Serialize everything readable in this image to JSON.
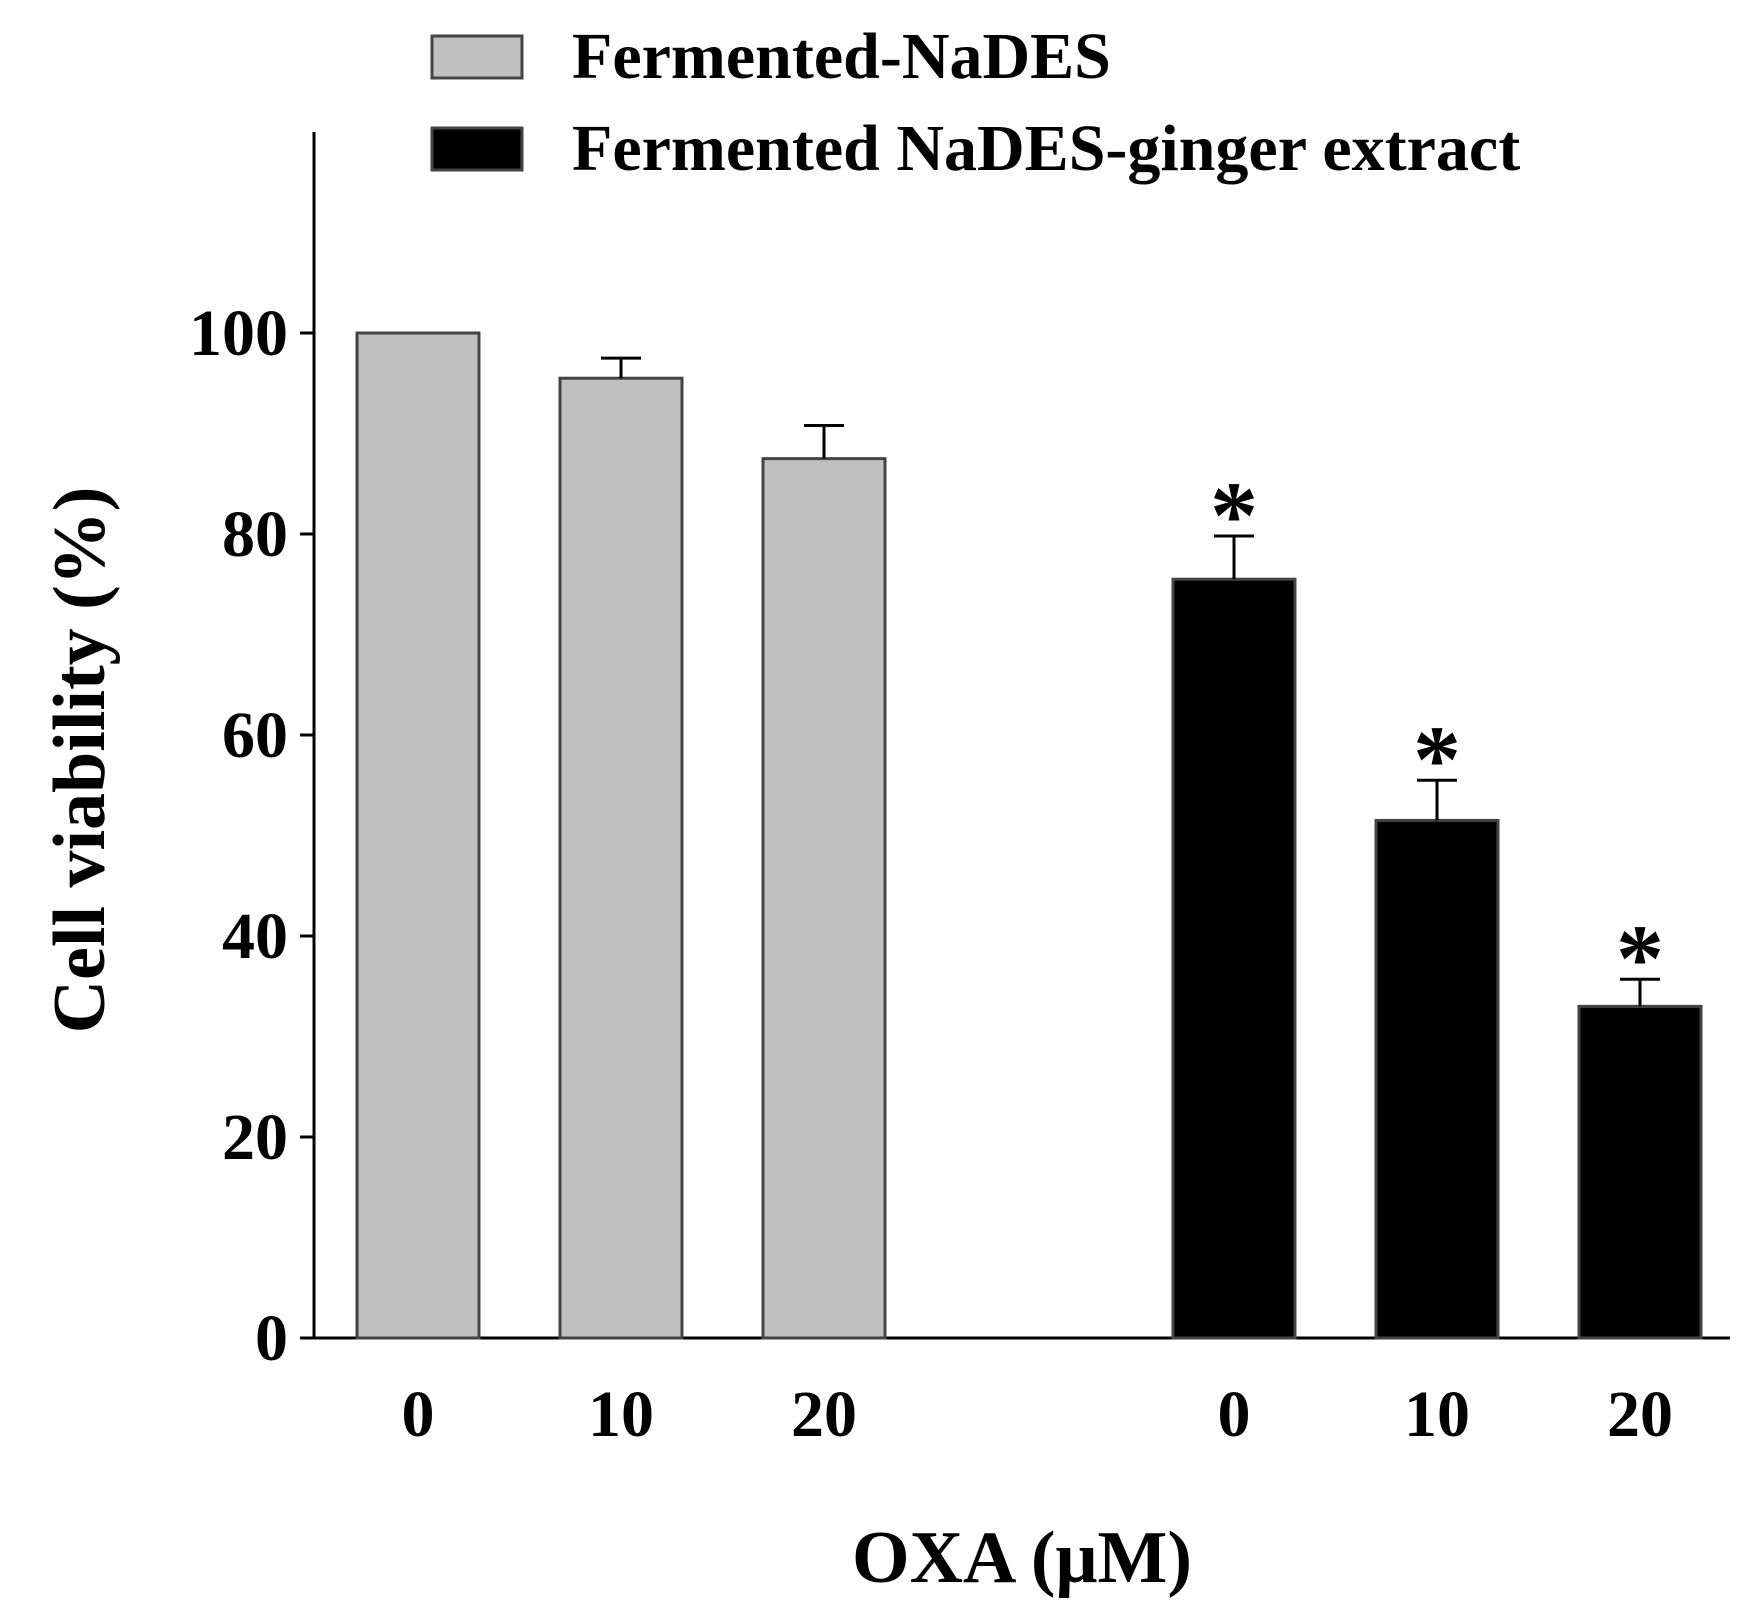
{
  "chart_data": {
    "type": "bar",
    "title": "",
    "xlabel": "OXA (μM)",
    "ylabel": "Cell viability (%)",
    "ylim": [
      0,
      120
    ],
    "yticks": [
      0,
      20,
      40,
      60,
      80,
      100
    ],
    "categories": [
      "0",
      "10",
      "20"
    ],
    "grid": false,
    "legend_position": "top",
    "series": [
      {
        "name": "Fermented-NaDES",
        "color": "#c0c0c0",
        "values": [
          100,
          95.5,
          87.5
        ],
        "errors": [
          0,
          2,
          3.3
        ],
        "annotations": [
          "",
          "",
          ""
        ]
      },
      {
        "name": "Fermented NaDES-ginger extract",
        "color": "#000000",
        "values": [
          75.5,
          51.5,
          33
        ],
        "errors": [
          4.3,
          4,
          2.7
        ],
        "annotations": [
          "*",
          "*",
          "*"
        ]
      }
    ]
  }
}
